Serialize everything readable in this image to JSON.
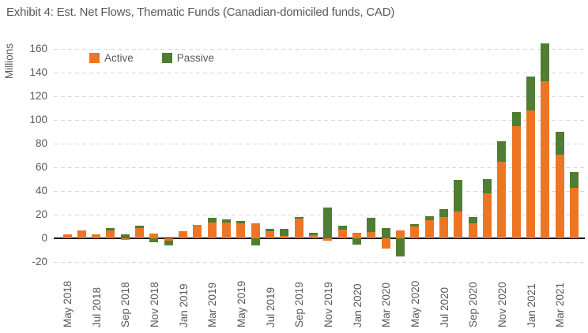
{
  "title": "Exhibit 4: Est. Net Flows, Thematic Funds (Canadian-domiciled funds, CAD)",
  "chart_data": {
    "type": "bar",
    "stacked": true,
    "title": "Exhibit 4: Est. Net Flows, Thematic Funds (Canadian-domiciled funds, CAD)",
    "xlabel": "",
    "ylabel": "Millions",
    "ylim": [
      -20,
      160
    ],
    "ytick_step": 20,
    "ytick_labels": [
      "-20",
      "0",
      "20",
      "40",
      "60",
      "80",
      "100",
      "120",
      "140",
      "160"
    ],
    "grid": "horizontal dashed",
    "gridline_color": "#d9d9d9",
    "axis_line_color": "#000000",
    "text_color": "#595959",
    "legend_position": "top-left inside plot",
    "xtick_every": 2,
    "xtick_labels_shown": [
      "May 2018",
      "Jul 2018",
      "Sep 2018",
      "Nov 2018",
      "Jan 2019",
      "Mar 2019",
      "May 2019",
      "Jul 2019",
      "Sep 2019",
      "Nov 2019",
      "Jan 2020",
      "Mar 2020",
      "May 2020",
      "Jul 2020",
      "Sep 2020",
      "Nov 2020",
      "Jan 2021",
      "Mar 2021"
    ],
    "categories": [
      "May 2018",
      "Jun 2018",
      "Jul 2018",
      "Aug 2018",
      "Sep 2018",
      "Oct 2018",
      "Nov 2018",
      "Dec 2018",
      "Jan 2019",
      "Feb 2019",
      "Mar 2019",
      "Apr 2019",
      "May 2019",
      "Jun 2019",
      "Jul 2019",
      "Aug 2019",
      "Sep 2019",
      "Oct 2019",
      "Nov 2019",
      "Dec 2019",
      "Jan 2020",
      "Feb 2020",
      "Mar 2020",
      "Apr 2020",
      "May 2020",
      "Jun 2020",
      "Jul 2020",
      "Aug 2020",
      "Sep 2020",
      "Oct 2020",
      "Nov 2020",
      "Dec 2020",
      "Jan 2021",
      "Feb 2021",
      "Mar 2021",
      "Apr 2021"
    ],
    "series": [
      {
        "name": "Active",
        "color": "#ee7523",
        "values": [
          3.5,
          6.5,
          3.5,
          7,
          -1.5,
          8.5,
          4,
          -2,
          6,
          11.5,
          13.5,
          13.5,
          12.5,
          12.5,
          6,
          2,
          16.5,
          3,
          -2,
          7.5,
          5,
          5.5,
          -8.5,
          7,
          10,
          15.5,
          18,
          22.5,
          13,
          38,
          65,
          95,
          108,
          133,
          71,
          43
        ]
      },
      {
        "name": "Passive",
        "color": "#4f7d32",
        "values": [
          0,
          0,
          0,
          2,
          3.5,
          2,
          -3,
          -4,
          0,
          0,
          4,
          2.5,
          2.5,
          -6,
          2,
          6,
          1.5,
          2,
          26,
          3,
          -5.5,
          12,
          8.5,
          -15.5,
          2,
          3.5,
          6.5,
          27,
          5,
          12,
          17,
          12,
          29,
          32,
          19,
          13
        ]
      }
    ]
  }
}
